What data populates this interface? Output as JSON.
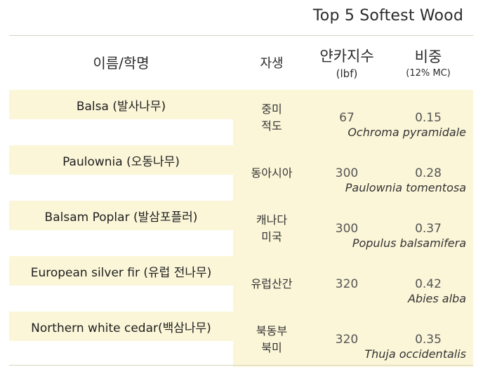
{
  "title": "Top 5 Softest Wood",
  "headers": {
    "name": "이름/학명",
    "native": "자생",
    "hardness": "얀카지수",
    "hardness_unit": "(lbf)",
    "gravity": "비중",
    "gravity_unit": "(12% MC)"
  },
  "rows": [
    {
      "common": "Balsa (발사나무)",
      "scientific": "Ochroma pyramidale",
      "native": [
        "중미",
        "적도"
      ],
      "hardness": "67",
      "gravity": "0.15"
    },
    {
      "common": "Paulownia (오동나무)",
      "scientific": "Paulownia tomentosa",
      "native": [
        "동아시아"
      ],
      "hardness": "300",
      "gravity": "0.28"
    },
    {
      "common": "Balsam Poplar (발삼포플러)",
      "scientific": "Populus balsamifera",
      "native": [
        "캐나다",
        "미국"
      ],
      "hardness": "300",
      "gravity": "0.37"
    },
    {
      "common": "European silver fir (유럽 전나무)",
      "scientific": "Abies alba",
      "native": [
        "유럽산간"
      ],
      "hardness": "320",
      "gravity": "0.42"
    },
    {
      "common": "Northern white cedar(백삼나무)",
      "scientific": "Thuja occidentalis",
      "native": [
        "북동부",
        "북미"
      ],
      "hardness": "320",
      "gravity": "0.35"
    }
  ],
  "colors": {
    "row_bg": "#fbf6d8",
    "rule": "#d6d3bf"
  }
}
